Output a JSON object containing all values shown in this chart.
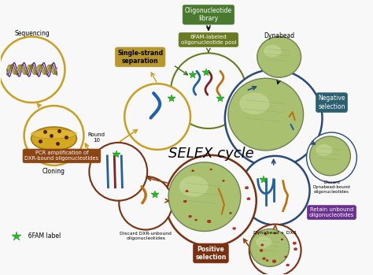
{
  "bg_color": "#f0f0f0",
  "fig_width": 4.74,
  "fig_height": 3.49,
  "labels": {
    "sequencing": "Sequencing",
    "cloning": "Cloning",
    "oligo_library": "Oligonucleotide\nlibrary",
    "fam_pool": "6FAM-labeled\noligonucleotide pool",
    "dynabead_top": "Dynabead",
    "single_strand": "Single-strand\nseparation",
    "round10": "Round\n10",
    "selex_cycle": "SELEX cycle",
    "negative_sel": "Negative\nselection",
    "positive_sel": "Positive\nselection",
    "pcr_ampl": "PCR amplification of\nDXR-bound oligonucleotides",
    "discard_dynabead": "Discard\nDynabead-bound\noligonucleotides",
    "retain_unbound": "Retain unbound\noligonucleotides",
    "dynabead_dxr": "Dynabead + DXR",
    "discard_dxr": "Discard DXR-unbound\noligonucleotides",
    "fam_label": "  6FAM label"
  },
  "colors": {
    "gold_circle": "#c8a020",
    "olive_green": "#6a7a20",
    "dark_green_box": "#4a7a30",
    "teal_box": "#2a6070",
    "brown_box": "#7a3010",
    "brown_arrow": "#8B4513",
    "dark_blue_circle": "#2a4a7a",
    "dynabead_fill": "#a8c070",
    "dynabead_highlight": "#d0dfa0",
    "green_star": "#20c020",
    "purple_box": "#6a3090",
    "pcr_box": "#8B4513",
    "gold_arrow": "#c8a020",
    "dark_green_arrow": "#3a6a20",
    "cell_bg": "#e8e0d0"
  }
}
